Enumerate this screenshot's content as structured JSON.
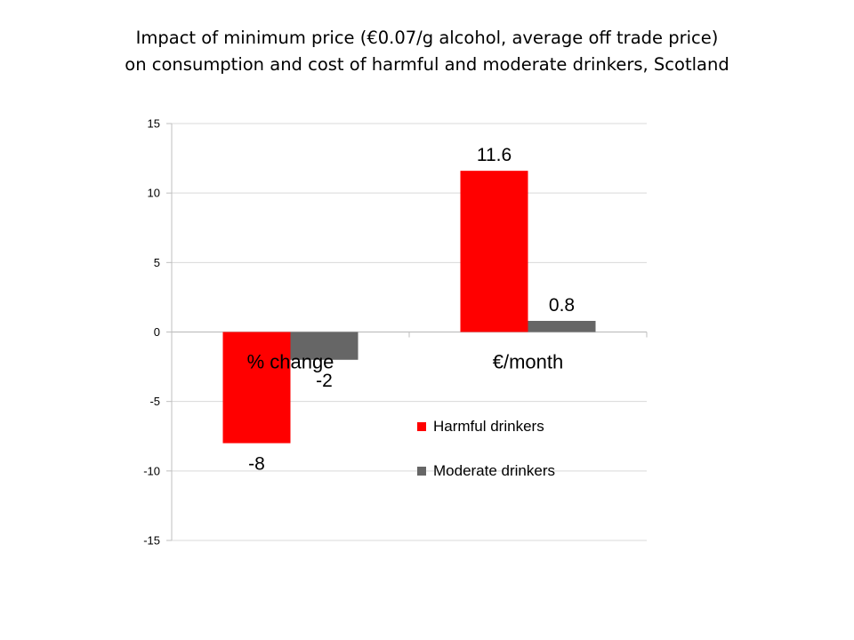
{
  "title": {
    "line1": "Impact of  minimum price (€0.07/g alcohol,  average off trade price)",
    "line2": "on consumption and cost of harmful and moderate drinkers, Scotland"
  },
  "chart_data": {
    "type": "bar",
    "categories": [
      "% change",
      "€/month"
    ],
    "series": [
      {
        "name": "Harmful drinkers",
        "values": [
          -8,
          11.6
        ],
        "color": "#ff0000"
      },
      {
        "name": "Moderate drinkers",
        "values": [
          -2,
          0.8
        ],
        "color": "#666666"
      }
    ],
    "data_labels": [
      [
        "-8",
        "11.6"
      ],
      [
        "-2",
        "0.8"
      ]
    ],
    "ylim": [
      -15,
      15
    ],
    "yticks": [
      15,
      10,
      5,
      0,
      -5,
      -10,
      -15
    ],
    "grid": true,
    "legend_position": "right"
  }
}
